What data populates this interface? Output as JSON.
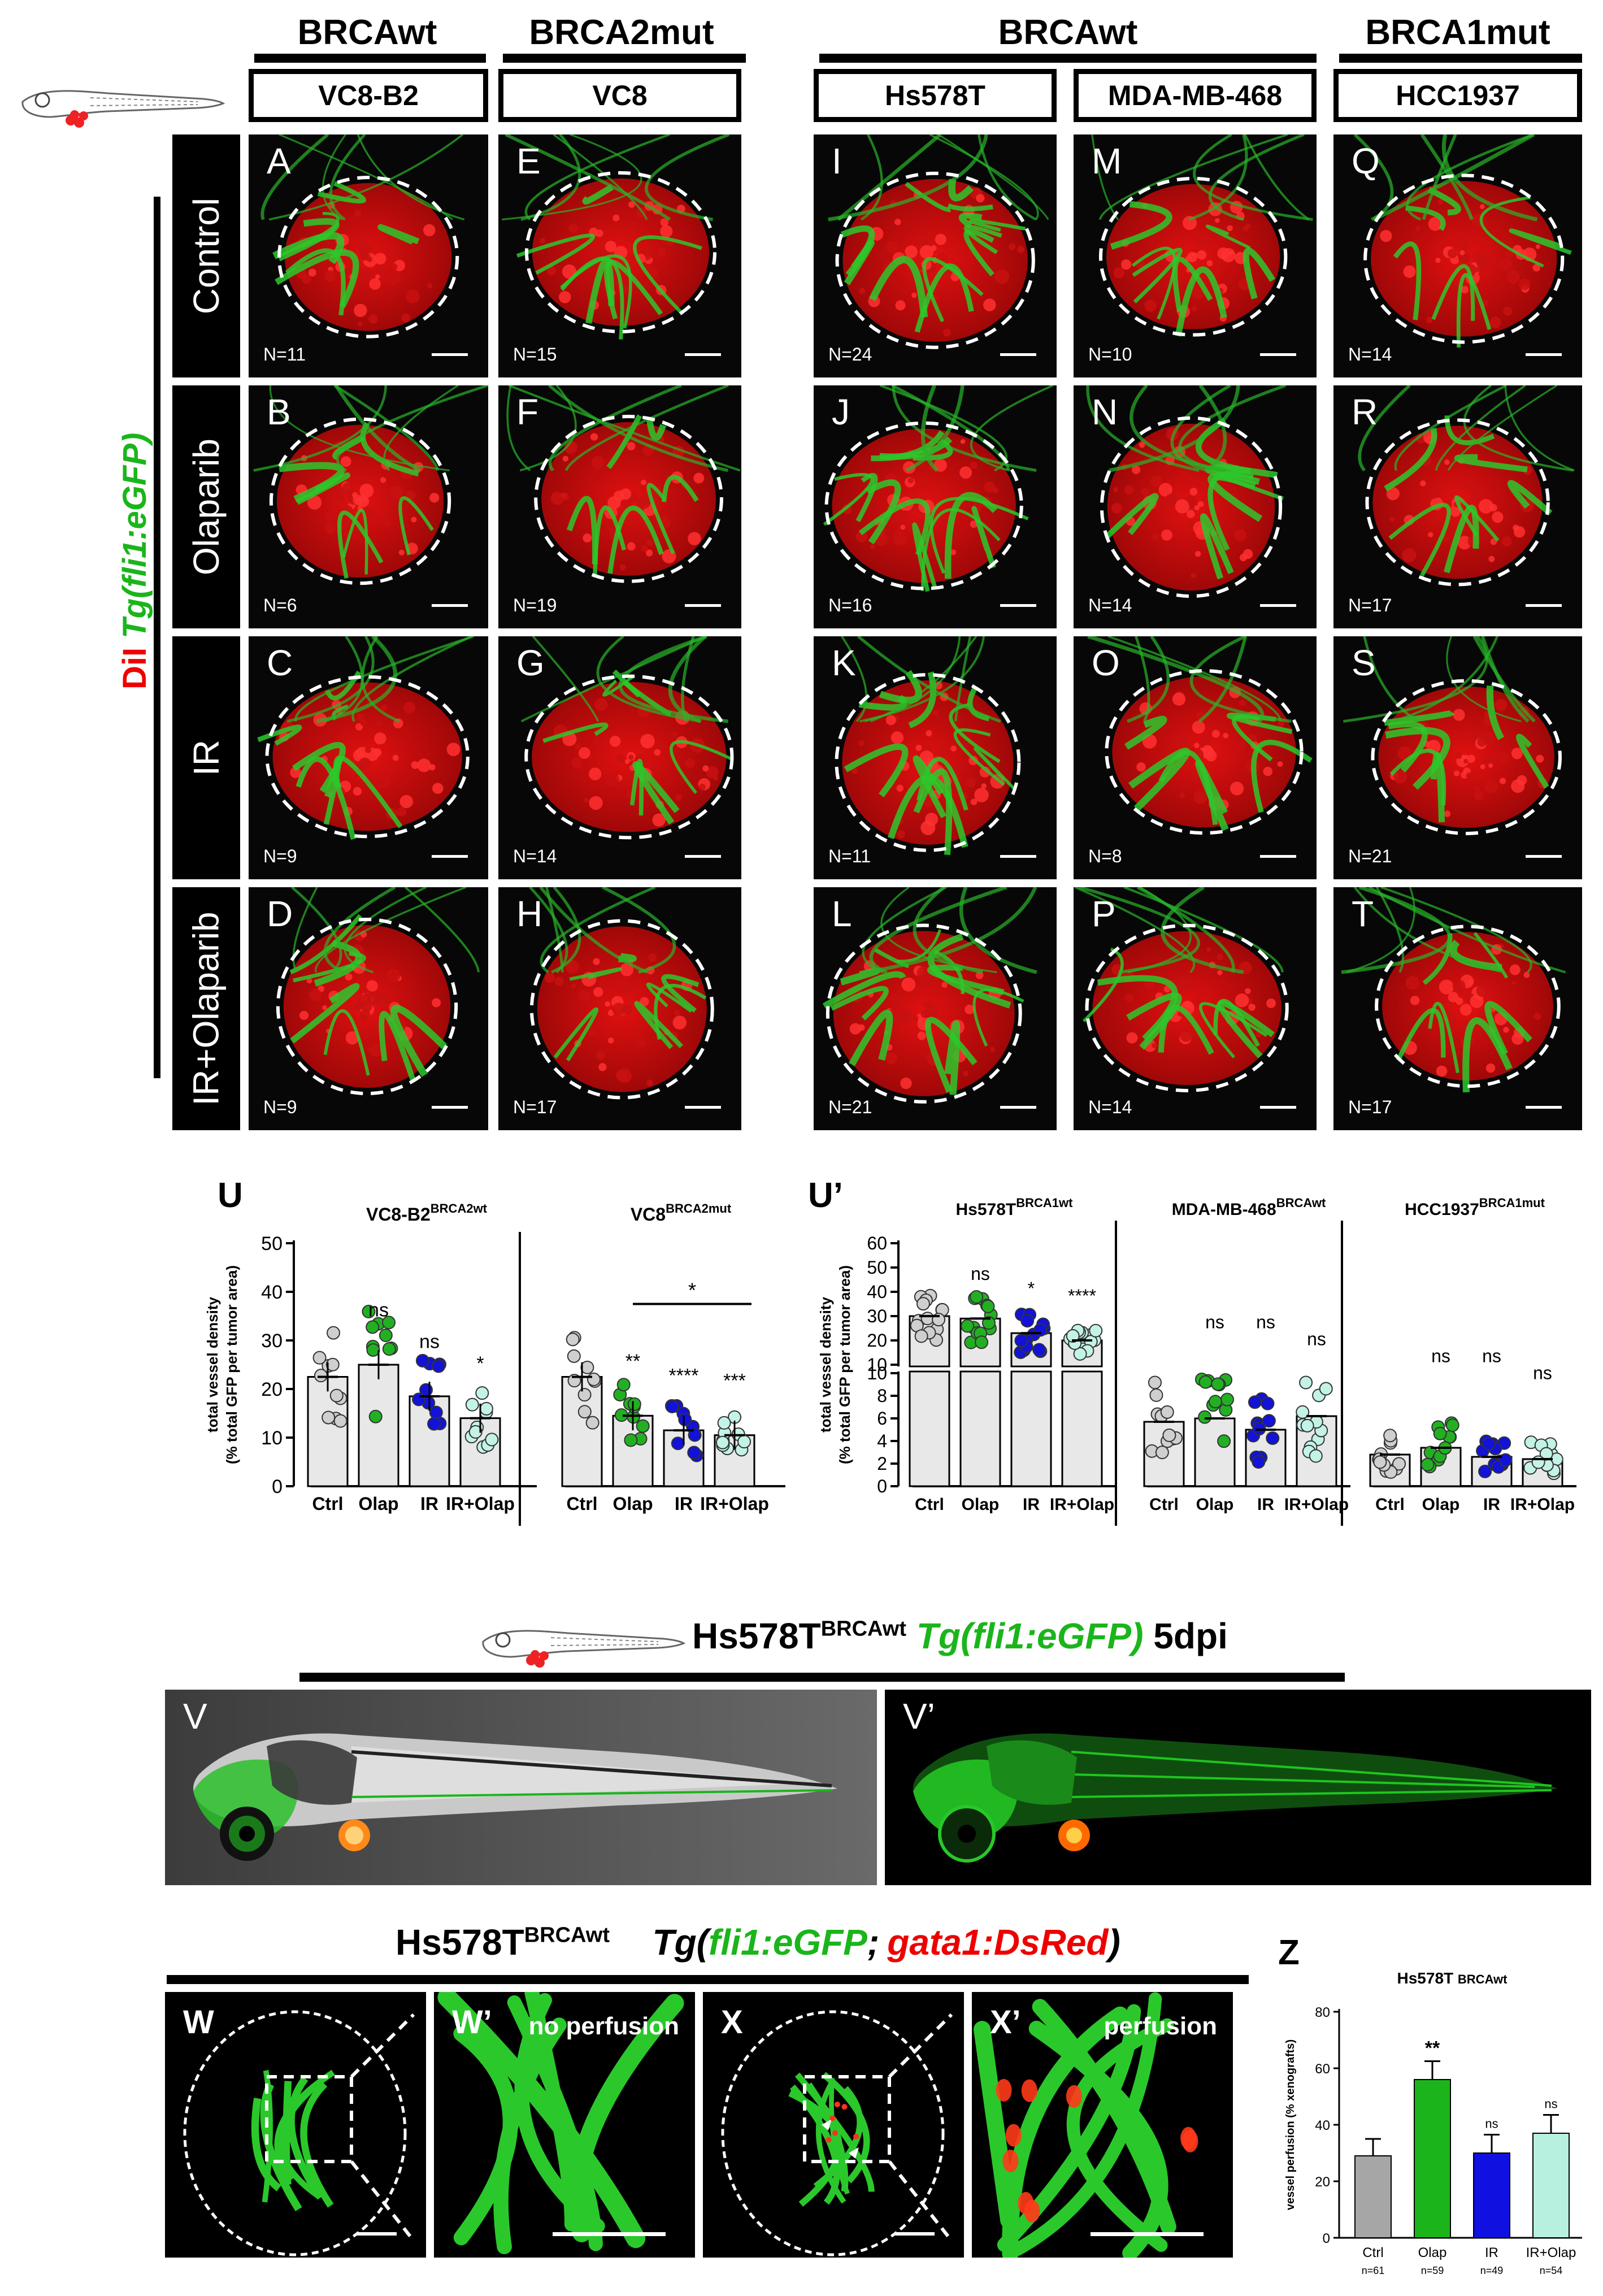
{
  "top": {
    "headers": [
      "BRCAwt",
      "BRCA2mut",
      "BRCAwt",
      "BRCA1mut"
    ],
    "cell_lines": [
      "VC8-B2",
      "VC8",
      "Hs578T",
      "MDA-MB-468",
      "HCC1937"
    ],
    "rows": [
      "Control",
      "Olaparib",
      "IR",
      "IR+Olaparib"
    ],
    "side_label_red": "DiI",
    "side_label_green": "Tg(fli1:eGFP)",
    "panels": [
      {
        "letter": "A",
        "n": "N=11"
      },
      {
        "letter": "E",
        "n": "N=15"
      },
      {
        "letter": "I",
        "n": "N=24"
      },
      {
        "letter": "M",
        "n": "N=10"
      },
      {
        "letter": "Q",
        "n": "N=14"
      },
      {
        "letter": "B",
        "n": "N=6"
      },
      {
        "letter": "F",
        "n": "N=19"
      },
      {
        "letter": "J",
        "n": "N=16"
      },
      {
        "letter": "N",
        "n": "N=14"
      },
      {
        "letter": "R",
        "n": "N=17"
      },
      {
        "letter": "C",
        "n": "N=9"
      },
      {
        "letter": "G",
        "n": "N=14"
      },
      {
        "letter": "K",
        "n": "N=11"
      },
      {
        "letter": "O",
        "n": "N=8"
      },
      {
        "letter": "S",
        "n": "N=21"
      },
      {
        "letter": "D",
        "n": "N=9"
      },
      {
        "letter": "H",
        "n": "N=17"
      },
      {
        "letter": "L",
        "n": "N=21"
      },
      {
        "letter": "P",
        "n": "N=14"
      },
      {
        "letter": "T",
        "n": "N=17"
      }
    ]
  },
  "chart_U": {
    "letter": "U",
    "ylabel_line1": "total vessel density",
    "ylabel_line2": "(% total GFP per tumor area)",
    "type": "bar",
    "yticks": [
      "0",
      "10",
      "20",
      "30",
      "40",
      "50"
    ],
    "ylim": [
      0,
      50
    ],
    "groups": [
      {
        "title": "VC8-B2",
        "title_sup": "BRCA2wt",
        "categories": [
          "Ctrl",
          "Olap",
          "IR",
          "IR+Olap"
        ],
        "values": [
          22.5,
          25,
          18.5,
          14
        ],
        "sig": [
          "",
          "ns",
          "ns",
          "*"
        ]
      },
      {
        "title": "VC8",
        "title_sup": "BRCA2mut",
        "categories": [
          "Ctrl",
          "Olap",
          "IR",
          "IR+Olap"
        ],
        "values": [
          22.5,
          14.5,
          11.5,
          10.5
        ],
        "sig": [
          "",
          "**",
          "****",
          "***"
        ],
        "bracket_sig": "*"
      }
    ]
  },
  "chart_U2": {
    "letter": "U’",
    "ylabel_line1": "total vessel density",
    "ylabel_line2": "(% total GFP per tumor area)",
    "type": "bar",
    "yticks_upper": [
      "10",
      "20",
      "30",
      "40",
      "50",
      "60"
    ],
    "yticks_lower": [
      "0",
      "2",
      "4",
      "6",
      "8",
      "10"
    ],
    "groups": [
      {
        "title": "Hs578T",
        "title_sup": "BRCA1wt",
        "categories": [
          "Ctrl",
          "Olap",
          "IR",
          "IR+Olap"
        ],
        "values": [
          30,
          29,
          23,
          20
        ],
        "sig": [
          "",
          "ns",
          "*",
          "****"
        ]
      },
      {
        "title": "MDA-MB-468",
        "title_sup": "BRCAwt",
        "categories": [
          "Ctrl",
          "Olap",
          "IR",
          "IR+Olap"
        ],
        "values": [
          5.7,
          6,
          5,
          6.2
        ],
        "sig": [
          "",
          "ns",
          "ns",
          "ns"
        ]
      },
      {
        "title": "HCC1937",
        "title_sup": "BRCA1mut",
        "categories": [
          "Ctrl",
          "Olap",
          "IR",
          "IR+Olap"
        ],
        "values": [
          2.8,
          3.4,
          2.6,
          2.4
        ],
        "sig": [
          "",
          "ns",
          "ns",
          "ns"
        ]
      }
    ]
  },
  "section_V": {
    "title": "Hs578T",
    "title_sup": "BRCAwt",
    "title_green": "Tg(fli1:eGFP)",
    "title_tail": "5dpi",
    "letters": [
      "V",
      "V’"
    ]
  },
  "section_W": {
    "title": "Hs578T",
    "title_sup": "BRCAwt",
    "tg_prefix": "Tg(",
    "tg_green": "fli1:eGFP",
    "tg_sep": ";",
    "tg_red": "gata1:DsRed",
    "tg_suffix": ")",
    "panels": [
      {
        "letter": "W",
        "caption": ""
      },
      {
        "letter": "W’",
        "caption": "no perfusion"
      },
      {
        "letter": "X",
        "caption": ""
      },
      {
        "letter": "X’",
        "caption": "perfusion"
      }
    ]
  },
  "chart_Z": {
    "letter": "Z",
    "title": "Hs578T",
    "title_sup": "BRCAwt",
    "ylabel": "vessel perfusion (% xenografts)",
    "type": "bar",
    "yticks": [
      "0",
      "20",
      "40",
      "60",
      "80"
    ],
    "ylim": [
      0,
      80
    ],
    "categories": [
      "Ctrl",
      "Olap",
      "IR",
      "IR+Olap"
    ],
    "n_labels": [
      "n=61",
      "n=59",
      "n=49",
      "n=54"
    ],
    "values": [
      29,
      56,
      30,
      37
    ],
    "errors": [
      6,
      6.5,
      6.5,
      6.5
    ],
    "sig": [
      "",
      "**",
      "ns",
      "ns"
    ],
    "colors": [
      "#a6a6a6",
      "#1bb51b",
      "#1010e0",
      "#b8f0e0"
    ]
  }
}
